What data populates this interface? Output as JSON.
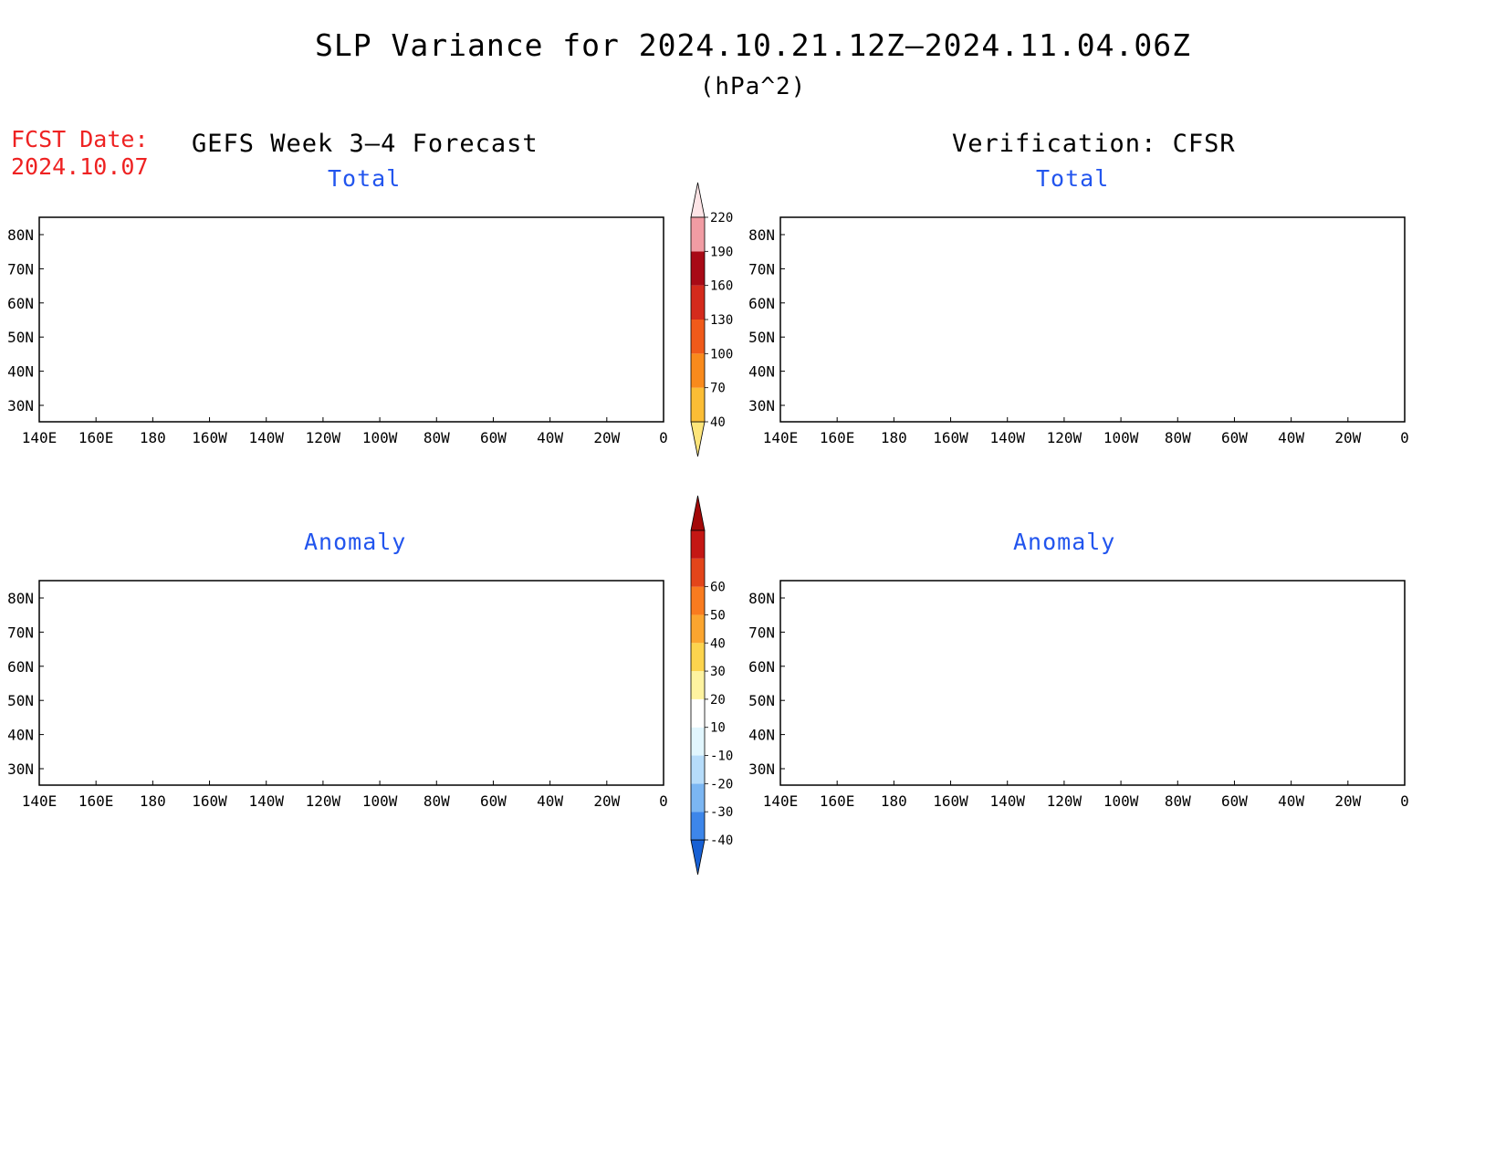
{
  "title": "SLP Variance for 2024.10.21.12Z–2024.11.04.06Z",
  "units": "(hPa^2)",
  "fcst_date": {
    "label": "FCST Date:",
    "value": "2024.10.07"
  },
  "columns": {
    "left": "GEFS Week 3–4 Forecast",
    "right": "Verification: CFSR"
  },
  "panels": {
    "top_left": "Total",
    "top_right": "Total",
    "bottom_left": "Anomaly",
    "bottom_right": "Anomaly"
  },
  "axes": {
    "lat_labels": [
      "80N",
      "70N",
      "60N",
      "50N",
      "40N",
      "30N"
    ],
    "lon_labels": [
      "140E",
      "160E",
      "180",
      "160W",
      "140W",
      "120W",
      "100W",
      "80W",
      "60W",
      "40W",
      "20W",
      "0"
    ]
  },
  "colorbars": {
    "total": {
      "levels": [
        "40",
        "70",
        "100",
        "130",
        "160",
        "190",
        "220"
      ],
      "colors": [
        "#fde57a",
        "#fbbd35",
        "#f98a1c",
        "#f05a1a",
        "#d42a1c",
        "#a80a16",
        "#f19ca3",
        "#fde4e6"
      ]
    },
    "anomaly": {
      "levels": [
        "-40",
        "-30",
        "-20",
        "-10",
        "10",
        "20",
        "30",
        "40",
        "50",
        "60"
      ],
      "colors": [
        "#1760d4",
        "#3d86ea",
        "#7bb6f2",
        "#b6dcfa",
        "#e1f6fe",
        "#ffffff",
        "#fef3a0",
        "#fcd44e",
        "#fba52f",
        "#f97b1f",
        "#e3451a",
        "#c41714",
        "#a30808"
      ]
    }
  }
}
